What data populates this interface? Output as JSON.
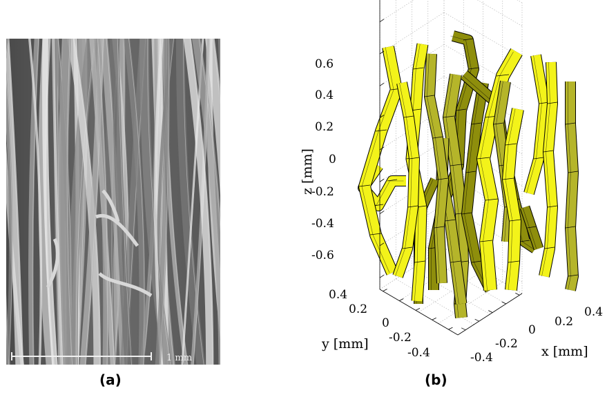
{
  "figure": {
    "panel_a": {
      "caption": "(a)",
      "scale_bar_label": "1 mm",
      "image_type": "SEM micrograph of fibers (grayscale)"
    },
    "panel_b": {
      "caption": "(b)",
      "z_label": "z [mm]",
      "x_label": "x [mm]",
      "y_label": "y [mm]",
      "z_ticks": [
        "0.6",
        "0.4",
        "0.2",
        "0",
        "-0.2",
        "-0.4",
        "-0.6"
      ],
      "x_ticks": [
        "-0.4",
        "-0.2",
        "0",
        "0.2",
        "0.4"
      ],
      "y_ticks": [
        "0.4",
        "0.2",
        "0",
        "-0.2",
        "-0.4"
      ],
      "fiber_color_light": "#f3f31a",
      "fiber_color_dark": "#8e8e0c",
      "fiber_color_olive": "#b5b52a"
    }
  },
  "chart_data": {
    "type": "3d-fiber-plot",
    "xlabel": "x [mm]",
    "ylabel": "y [mm]",
    "zlabel": "z [mm]",
    "xlim": [
      -0.4,
      0.4
    ],
    "ylim": [
      -0.4,
      0.4
    ],
    "zlim": [
      -0.6,
      0.6
    ],
    "x_ticks": [
      -0.4,
      -0.2,
      0,
      0.2,
      0.4
    ],
    "y_ticks": [
      -0.4,
      -0.2,
      0,
      0.2,
      0.4
    ],
    "z_ticks": [
      -0.6,
      -0.4,
      -0.2,
      0,
      0.2,
      0.4,
      0.6
    ],
    "grid": true
  }
}
